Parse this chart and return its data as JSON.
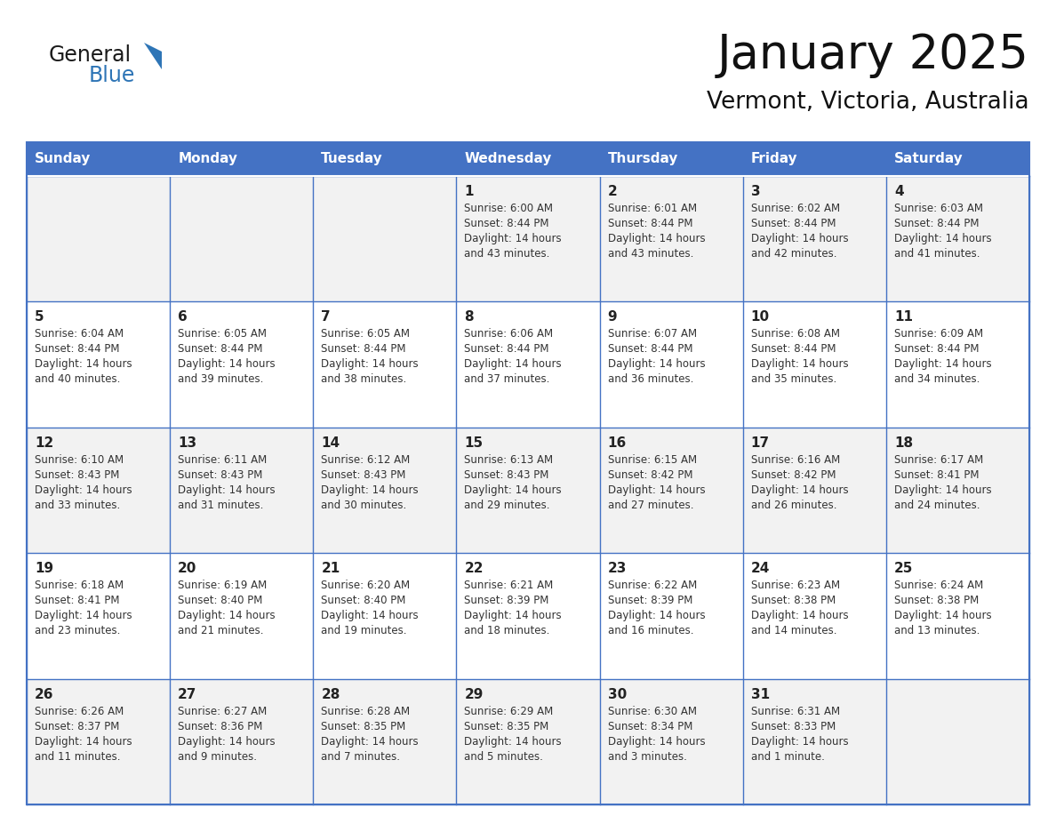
{
  "title": "January 2025",
  "subtitle": "Vermont, Victoria, Australia",
  "days_of_week": [
    "Sunday",
    "Monday",
    "Tuesday",
    "Wednesday",
    "Thursday",
    "Friday",
    "Saturday"
  ],
  "header_bg": "#4472C4",
  "header_text": "#FFFFFF",
  "cell_bg_odd": "#F2F2F2",
  "cell_bg_even": "#FFFFFF",
  "cell_border": "#4472C4",
  "title_color": "#111111",
  "subtitle_color": "#111111",
  "day_num_color": "#222222",
  "cell_text_color": "#333333",
  "logo_general_color": "#1a1a1a",
  "logo_blue_color": "#2E75B6",
  "calendar": [
    [
      null,
      null,
      null,
      {
        "day": 1,
        "sunrise": "6:00 AM",
        "sunset": "8:44 PM",
        "daylight": "14 hours and 43 minutes."
      },
      {
        "day": 2,
        "sunrise": "6:01 AM",
        "sunset": "8:44 PM",
        "daylight": "14 hours and 43 minutes."
      },
      {
        "day": 3,
        "sunrise": "6:02 AM",
        "sunset": "8:44 PM",
        "daylight": "14 hours and 42 minutes."
      },
      {
        "day": 4,
        "sunrise": "6:03 AM",
        "sunset": "8:44 PM",
        "daylight": "14 hours and 41 minutes."
      }
    ],
    [
      {
        "day": 5,
        "sunrise": "6:04 AM",
        "sunset": "8:44 PM",
        "daylight": "14 hours and 40 minutes."
      },
      {
        "day": 6,
        "sunrise": "6:05 AM",
        "sunset": "8:44 PM",
        "daylight": "14 hours and 39 minutes."
      },
      {
        "day": 7,
        "sunrise": "6:05 AM",
        "sunset": "8:44 PM",
        "daylight": "14 hours and 38 minutes."
      },
      {
        "day": 8,
        "sunrise": "6:06 AM",
        "sunset": "8:44 PM",
        "daylight": "14 hours and 37 minutes."
      },
      {
        "day": 9,
        "sunrise": "6:07 AM",
        "sunset": "8:44 PM",
        "daylight": "14 hours and 36 minutes."
      },
      {
        "day": 10,
        "sunrise": "6:08 AM",
        "sunset": "8:44 PM",
        "daylight": "14 hours and 35 minutes."
      },
      {
        "day": 11,
        "sunrise": "6:09 AM",
        "sunset": "8:44 PM",
        "daylight": "14 hours and 34 minutes."
      }
    ],
    [
      {
        "day": 12,
        "sunrise": "6:10 AM",
        "sunset": "8:43 PM",
        "daylight": "14 hours and 33 minutes."
      },
      {
        "day": 13,
        "sunrise": "6:11 AM",
        "sunset": "8:43 PM",
        "daylight": "14 hours and 31 minutes."
      },
      {
        "day": 14,
        "sunrise": "6:12 AM",
        "sunset": "8:43 PM",
        "daylight": "14 hours and 30 minutes."
      },
      {
        "day": 15,
        "sunrise": "6:13 AM",
        "sunset": "8:43 PM",
        "daylight": "14 hours and 29 minutes."
      },
      {
        "day": 16,
        "sunrise": "6:15 AM",
        "sunset": "8:42 PM",
        "daylight": "14 hours and 27 minutes."
      },
      {
        "day": 17,
        "sunrise": "6:16 AM",
        "sunset": "8:42 PM",
        "daylight": "14 hours and 26 minutes."
      },
      {
        "day": 18,
        "sunrise": "6:17 AM",
        "sunset": "8:41 PM",
        "daylight": "14 hours and 24 minutes."
      }
    ],
    [
      {
        "day": 19,
        "sunrise": "6:18 AM",
        "sunset": "8:41 PM",
        "daylight": "14 hours and 23 minutes."
      },
      {
        "day": 20,
        "sunrise": "6:19 AM",
        "sunset": "8:40 PM",
        "daylight": "14 hours and 21 minutes."
      },
      {
        "day": 21,
        "sunrise": "6:20 AM",
        "sunset": "8:40 PM",
        "daylight": "14 hours and 19 minutes."
      },
      {
        "day": 22,
        "sunrise": "6:21 AM",
        "sunset": "8:39 PM",
        "daylight": "14 hours and 18 minutes."
      },
      {
        "day": 23,
        "sunrise": "6:22 AM",
        "sunset": "8:39 PM",
        "daylight": "14 hours and 16 minutes."
      },
      {
        "day": 24,
        "sunrise": "6:23 AM",
        "sunset": "8:38 PM",
        "daylight": "14 hours and 14 minutes."
      },
      {
        "day": 25,
        "sunrise": "6:24 AM",
        "sunset": "8:38 PM",
        "daylight": "14 hours and 13 minutes."
      }
    ],
    [
      {
        "day": 26,
        "sunrise": "6:26 AM",
        "sunset": "8:37 PM",
        "daylight": "14 hours and 11 minutes."
      },
      {
        "day": 27,
        "sunrise": "6:27 AM",
        "sunset": "8:36 PM",
        "daylight": "14 hours and 9 minutes."
      },
      {
        "day": 28,
        "sunrise": "6:28 AM",
        "sunset": "8:35 PM",
        "daylight": "14 hours and 7 minutes."
      },
      {
        "day": 29,
        "sunrise": "6:29 AM",
        "sunset": "8:35 PM",
        "daylight": "14 hours and 5 minutes."
      },
      {
        "day": 30,
        "sunrise": "6:30 AM",
        "sunset": "8:34 PM",
        "daylight": "14 hours and 3 minutes."
      },
      {
        "day": 31,
        "sunrise": "6:31 AM",
        "sunset": "8:33 PM",
        "daylight": "14 hours and 1 minute."
      },
      null
    ]
  ]
}
